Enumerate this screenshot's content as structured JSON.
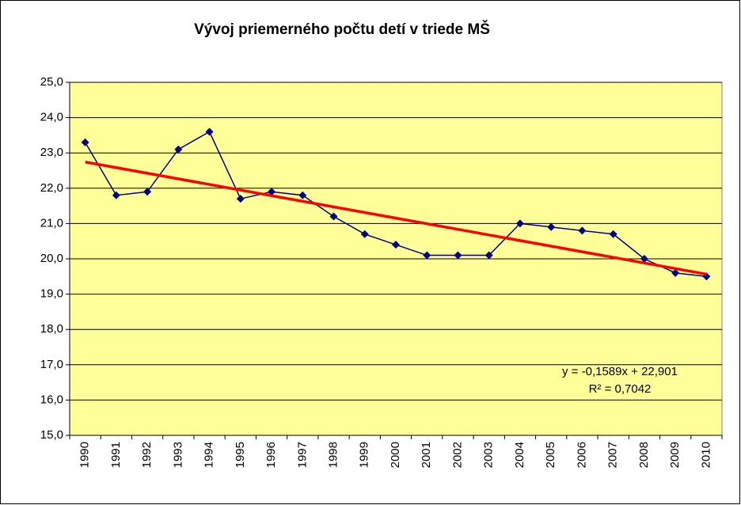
{
  "chart_data": {
    "type": "line",
    "title": "Vývoj priemerného  počtu detí v triede MŠ",
    "categories": [
      "1990",
      "1991",
      "1992",
      "1993",
      "1994",
      "1995",
      "1996",
      "1997",
      "1998",
      "1999",
      "2000",
      "2001",
      "2002",
      "2003",
      "2004",
      "2005",
      "2006",
      "2007",
      "2008",
      "2009",
      "2010"
    ],
    "series": [
      {
        "color": "#000080",
        "values": [
          23.3,
          21.8,
          21.9,
          23.1,
          23.6,
          21.7,
          21.9,
          21.8,
          21.2,
          20.7,
          20.4,
          20.1,
          20.1,
          20.1,
          21.0,
          20.9,
          20.8,
          20.7,
          20.0,
          19.6,
          19.5
        ]
      }
    ],
    "trendline": {
      "color": "#ff0000",
      "slope": -0.1589,
      "intercept": 22.901,
      "label": "y = -0,1589x + 22,901",
      "r2_label": "R² = 0,7042"
    },
    "ylim": [
      15,
      25
    ],
    "yticks": [
      {
        "value": 15,
        "label": "15,0"
      },
      {
        "value": 16,
        "label": "16,0"
      },
      {
        "value": 17,
        "label": "17,0"
      },
      {
        "value": 18,
        "label": "18,0"
      },
      {
        "value": 19,
        "label": "19,0"
      },
      {
        "value": 20,
        "label": "20,0"
      },
      {
        "value": 21,
        "label": "21,0"
      },
      {
        "value": 22,
        "label": "22,0"
      },
      {
        "value": 23,
        "label": "23,0"
      },
      {
        "value": 24,
        "label": "24,0"
      },
      {
        "value": 25,
        "label": "25,0"
      }
    ],
    "grid": true,
    "plot_background": "#ffff99"
  }
}
